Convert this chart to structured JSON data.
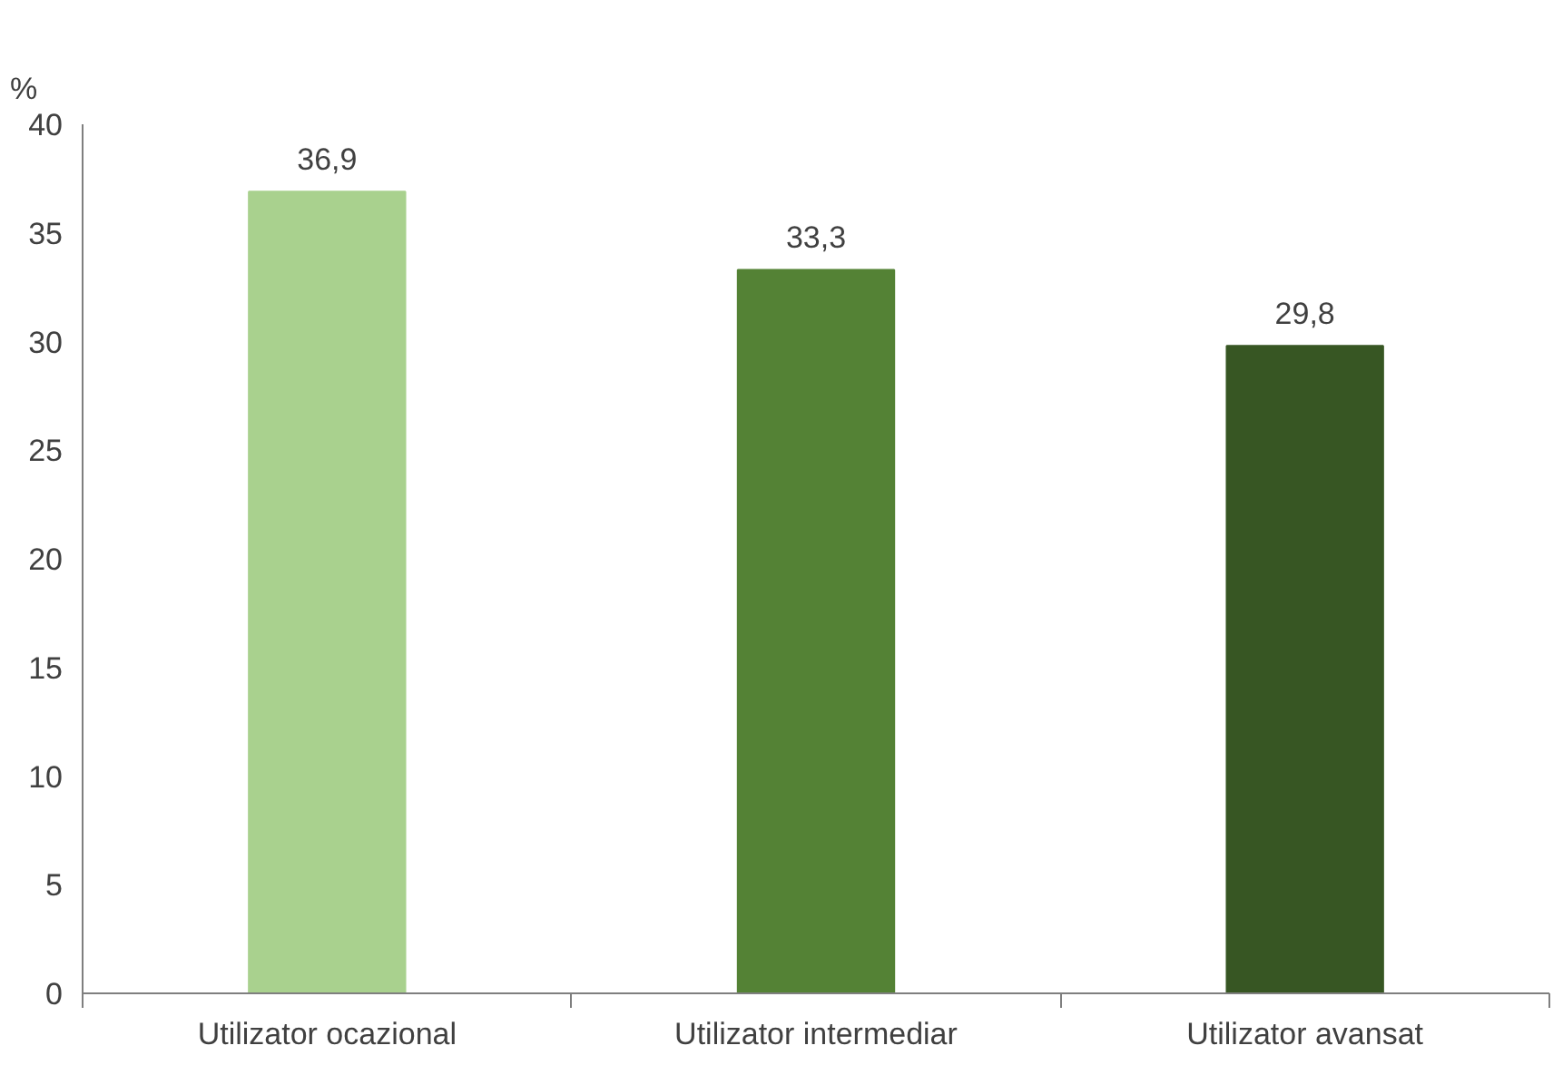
{
  "chart_data": {
    "type": "bar",
    "ylabel": "%",
    "categories": [
      "Utilizator ocazional",
      "Utilizator intermediar",
      "Utilizator avansat"
    ],
    "values": [
      36.9,
      33.3,
      29.8
    ],
    "colors": [
      "#a9d18e",
      "#548235",
      "#375623"
    ],
    "value_labels": [
      "36,9",
      "33,3",
      "29,8"
    ],
    "ylim": [
      0,
      40
    ],
    "yticks": [
      0,
      5,
      10,
      15,
      20,
      25,
      30,
      35,
      40
    ],
    "grid": false
  }
}
